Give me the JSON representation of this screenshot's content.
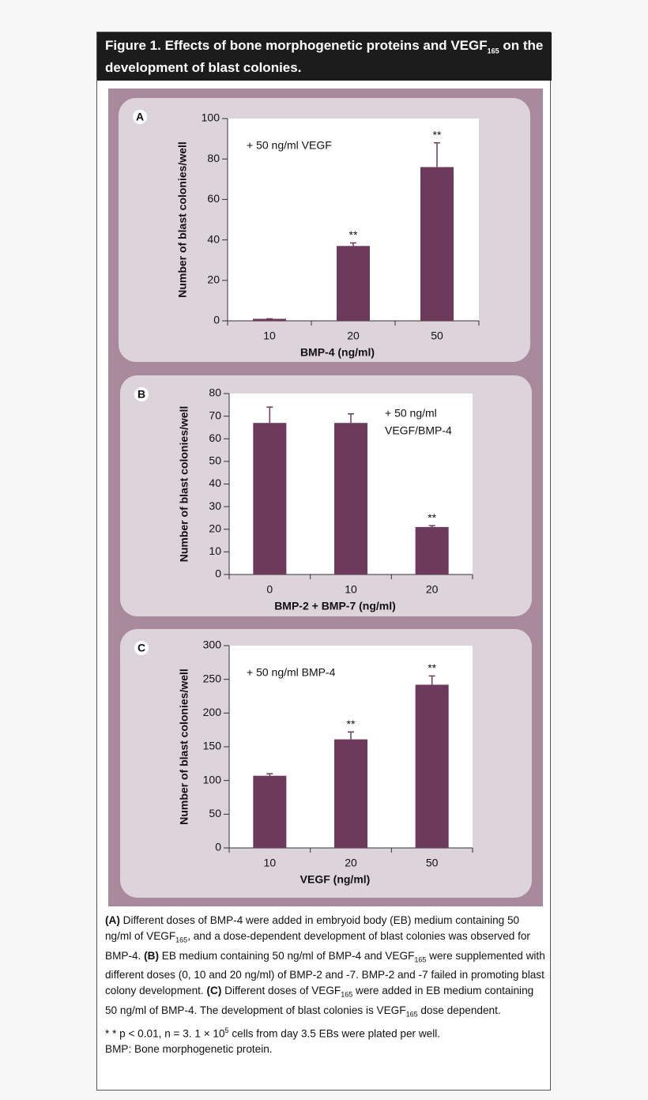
{
  "title": [
    "Figure 1. Effects of bone morphogenetic proteins and VEGF",
    "165",
    " on the development of blast colonies."
  ],
  "caption": [
    [
      "(A)",
      " Different doses of BMP-4 were added in embryoid body (EB) medium containing 50 ng/ml of VEGF",
      "165",
      ", and a dose-dependent development of blast colonies was observed for BMP-4. ",
      "(B)",
      " EB medium containing 50 ng/ml of BMP-4 and VEGF",
      "165",
      " were supplemented with different doses (0, 10 and 20 ng/ml) of BMP-2 and -7. BMP-2 and -7 failed in promoting blast colony development. ",
      "(C)",
      " Different doses of VEGF",
      "165",
      " were added in EB medium containing 50 ng/ml of BMP-4. The development of blast colonies is VEGF",
      "165",
      " dose dependent."
    ],
    [
      "* * p < 0.01, n = 3. 1 × 10",
      "5",
      " cells from day 3.5 EBs were plated per well."
    ],
    [
      "BMP: Bone morphogenetic protein."
    ]
  ],
  "chart_data": [
    {
      "type": "bar",
      "panel": "A",
      "annotation": [
        "+ 50 ng/ml VEGF"
      ],
      "x_label": "BMP-4 (ng/ml)",
      "y_label": "Number of blast colonies/well",
      "categories": [
        "10",
        "20",
        "50"
      ],
      "values": [
        1,
        37,
        76
      ],
      "errors": [
        0,
        1.5,
        12
      ],
      "markers": [
        null,
        "**",
        "**"
      ],
      "color": "#6e3a5c",
      "ylim": [
        0,
        100
      ],
      "yticks": [
        0,
        20,
        40,
        60,
        80,
        100
      ]
    },
    {
      "type": "bar",
      "panel": "B",
      "annotation": [
        "+ 50 ng/ml",
        "VEGF/BMP-4"
      ],
      "x_label": "BMP-2 + BMP-7 (ng/ml)",
      "y_label": "Number of blast colonies/well",
      "categories": [
        "0",
        "10",
        "20"
      ],
      "values": [
        67,
        67,
        21
      ],
      "errors": [
        7,
        4,
        0.6
      ],
      "markers": [
        null,
        null,
        "**"
      ],
      "color": "#6e3a5c",
      "ylim": [
        0,
        80
      ],
      "yticks": [
        0,
        10,
        20,
        30,
        40,
        50,
        60,
        70,
        80
      ]
    },
    {
      "type": "bar",
      "panel": "C",
      "annotation": [
        "+ 50 ng/ml BMP-4"
      ],
      "x_label": "VEGF (ng/ml)",
      "y_label": "Number of blast colonies/well",
      "categories": [
        "10",
        "20",
        "50"
      ],
      "values": [
        107,
        161,
        242
      ],
      "errors": [
        3,
        11,
        13
      ],
      "markers": [
        null,
        "**",
        "**"
      ],
      "color": "#6e3a5c",
      "ylim": [
        0,
        300
      ],
      "yticks": [
        0,
        50,
        100,
        150,
        200,
        250,
        300
      ]
    }
  ]
}
